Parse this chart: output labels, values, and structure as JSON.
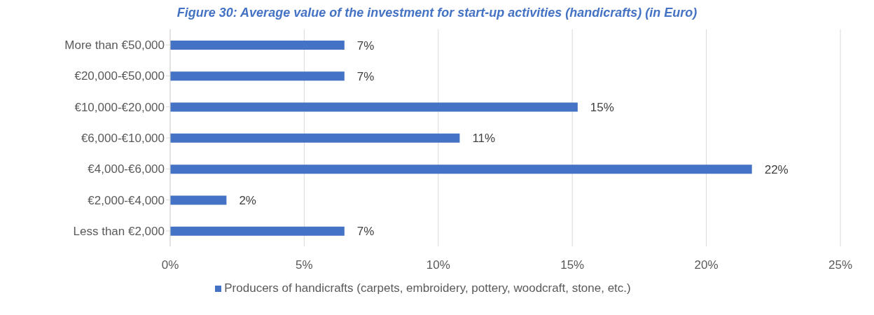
{
  "chart_data": {
    "type": "bar",
    "orientation": "horizontal",
    "title": "Figure 30: Average value of the investment for start-up activities (handicrafts) (in Euro)",
    "categories": [
      "More than €50,000",
      "€20,000-€50,000",
      "€10,000-€20,000",
      "€6,000-€10,000",
      "€4,000-€6,000",
      "€2,000-€4,000",
      "Less than €2,000"
    ],
    "series": [
      {
        "name": "Producers of handicrafts (carpets, embroidery, pottery, woodcraft, stone, etc.)",
        "color": "#4472c4",
        "values": [
          6.5,
          6.5,
          15.2,
          10.8,
          21.7,
          2.1,
          6.5
        ],
        "value_labels": [
          "7%",
          "7%",
          "15%",
          "11%",
          "22%",
          "2%",
          "7%"
        ]
      }
    ],
    "xlim": [
      0,
      25
    ],
    "xticks": [
      {
        "value": 0,
        "label": "0%"
      },
      {
        "value": 5,
        "label": "5%"
      },
      {
        "value": 10,
        "label": "10%"
      },
      {
        "value": 15,
        "label": "15%"
      },
      {
        "value": 20,
        "label": "20%"
      },
      {
        "value": 25,
        "label": "25%"
      }
    ],
    "grid": "x",
    "legend": "bottom"
  }
}
